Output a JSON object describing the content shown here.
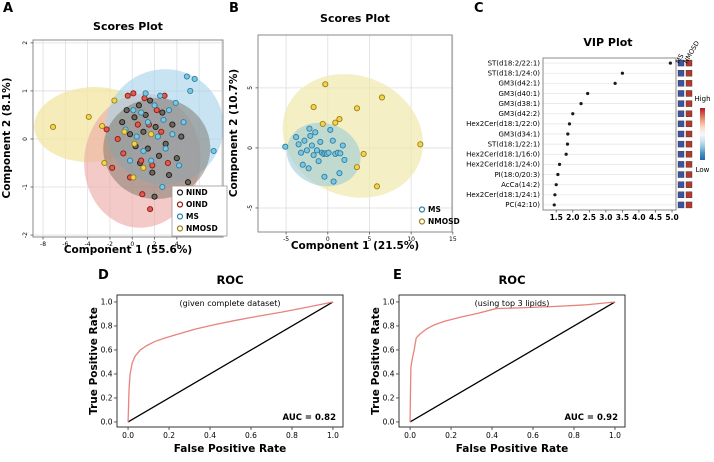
{
  "figure": {
    "letters": {
      "a": "A",
      "b": "B",
      "c": "C",
      "d": "D",
      "e": "E"
    },
    "background": "#ffffff"
  },
  "chart_data": [
    {
      "id": "pca-all",
      "type": "scatter",
      "title": "Scores Plot",
      "xlabel": "Component 1 (55.6%)",
      "ylabel": "Component 2 (8.1%)",
      "xlim": [
        -8.9,
        8.14
      ],
      "ylim": [
        -2.04,
        2.06
      ],
      "xticks": [
        -8,
        -6,
        -4,
        -2,
        0,
        2,
        4
      ],
      "xgrid": [
        -8,
        -6,
        -4,
        -2,
        0,
        2,
        4,
        6,
        8
      ],
      "yticks": [
        -2,
        -1,
        0,
        1,
        2
      ],
      "grid": true,
      "legend_position": "bottom-right-boxed",
      "groups": [
        {
          "name": "NIND",
          "stroke": "#1a1a1a",
          "fill": "#6e675c",
          "points": [
            [
              -0.9,
              0.35
            ],
            [
              -0.5,
              0.6
            ],
            [
              -0.2,
              0.1
            ],
            [
              0.2,
              0.45
            ],
            [
              0.3,
              -0.15
            ],
            [
              0.6,
              0.7
            ],
            [
              0.7,
              -0.5
            ],
            [
              1.0,
              0.15
            ],
            [
              1.2,
              0.5
            ],
            [
              1.4,
              -0.2
            ],
            [
              1.6,
              0.8
            ],
            [
              1.8,
              -0.7
            ],
            [
              2.1,
              0.25
            ],
            [
              2.4,
              -0.35
            ],
            [
              2.7,
              0.55
            ],
            [
              3.0,
              -0.1
            ],
            [
              3.3,
              -0.75
            ],
            [
              3.6,
              0.3
            ],
            [
              4.0,
              -0.4
            ],
            [
              4.4,
              0.05
            ],
            [
              5.0,
              -0.9
            ],
            [
              2.0,
              -1.2
            ]
          ]
        },
        {
          "name": "OIND",
          "stroke": "#8c1a12",
          "fill": "#e05a4e",
          "points": [
            [
              -2.3,
              0.2
            ],
            [
              -1.8,
              -0.6
            ],
            [
              -1.3,
              0.0
            ],
            [
              -0.8,
              -0.3
            ],
            [
              -0.4,
              0.9
            ],
            [
              -0.2,
              -0.8
            ],
            [
              0.1,
              0.95
            ],
            [
              0.5,
              0.3
            ],
            [
              0.8,
              -0.45
            ],
            [
              1.1,
              0.85
            ],
            [
              1.5,
              0.3
            ],
            [
              1.8,
              -0.55
            ],
            [
              2.2,
              0.6
            ],
            [
              2.6,
              0.15
            ],
            [
              2.9,
              0.9
            ],
            [
              3.2,
              -0.5
            ],
            [
              0.9,
              -1.15
            ],
            [
              1.6,
              -1.46
            ]
          ]
        },
        {
          "name": "MS",
          "stroke": "#2e7fa3",
          "fill": "#7ec6e0",
          "points": [
            [
              -0.6,
              0.2
            ],
            [
              -0.2,
              -0.45
            ],
            [
              0.1,
              0.6
            ],
            [
              0.4,
              0.05
            ],
            [
              0.8,
              0.55
            ],
            [
              1.0,
              -0.25
            ],
            [
              1.2,
              0.95
            ],
            [
              1.4,
              0.35
            ],
            [
              1.7,
              -0.45
            ],
            [
              2.0,
              0.7
            ],
            [
              2.3,
              0.05
            ],
            [
              2.5,
              0.9
            ],
            [
              2.8,
              0.4
            ],
            [
              3.0,
              -0.2
            ],
            [
              3.3,
              0.6
            ],
            [
              3.6,
              0.1
            ],
            [
              3.9,
              0.75
            ],
            [
              4.2,
              -0.55
            ],
            [
              4.6,
              0.35
            ],
            [
              4.9,
              1.3
            ],
            [
              5.6,
              1.25
            ],
            [
              5.2,
              1.0
            ],
            [
              7.3,
              -0.25
            ],
            [
              2.7,
              -1.0
            ],
            [
              3.8,
              -1.1
            ]
          ]
        },
        {
          "name": "NMOSD",
          "stroke": "#9c7e14",
          "fill": "#f3d44f",
          "points": [
            [
              -7.1,
              0.25
            ],
            [
              -3.9,
              0.46
            ],
            [
              -2.7,
              0.27
            ],
            [
              -2.5,
              -0.5
            ],
            [
              -1.6,
              0.8
            ],
            [
              -0.7,
              0.15
            ],
            [
              0.2,
              -0.1
            ],
            [
              1.0,
              -0.6
            ],
            [
              1.7,
              0.1
            ],
            [
              0.1,
              -0.8
            ]
          ]
        }
      ],
      "ellipses": [
        {
          "group": "NMOSD",
          "cx": -3.6,
          "cy": 0.3,
          "rx": 5.2,
          "ry": 0.78,
          "rot": -3,
          "fill": "#f2e6a2",
          "opacity": 0.75
        },
        {
          "group": "OIND",
          "cx": 0.9,
          "cy": -0.45,
          "rx": 5.2,
          "ry": 1.4,
          "rot": 7,
          "fill": "#eeaaa6",
          "opacity": 0.62
        },
        {
          "group": "MS",
          "cx": 2.9,
          "cy": 0.25,
          "rx": 5.3,
          "ry": 1.2,
          "rot": -14,
          "fill": "#a6d2ea",
          "opacity": 0.62
        },
        {
          "group": "NIND",
          "cx": 2.2,
          "cy": -0.2,
          "rx": 4.8,
          "ry": 1.05,
          "rot": -4,
          "fill": "#7a7468",
          "opacity": 0.5
        }
      ]
    },
    {
      "id": "pca-ms-nmosd",
      "type": "scatter",
      "title": "Scores Plot",
      "xlabel": "Component 1 (21.5%)",
      "ylabel": "Component 2 (10.7%)",
      "xlim": [
        -8.37,
        14.9
      ],
      "ylim": [
        -7.0,
        9.4
      ],
      "xticks": [
        -5,
        0,
        5,
        10,
        15
      ],
      "yticks": [
        -5,
        0,
        5
      ],
      "grid": true,
      "legend_position": "bottom-right-plain",
      "groups": [
        {
          "name": "MS",
          "stroke": "#2e7fa3",
          "fill": "#7ec6e0",
          "points": [
            [
              -5.1,
              0.1
            ],
            [
              -3.8,
              0.9
            ],
            [
              -3.5,
              0.3
            ],
            [
              -3.2,
              -0.4
            ],
            [
              -3.0,
              -1.4
            ],
            [
              -2.8,
              0.6
            ],
            [
              -2.5,
              -0.2
            ],
            [
              -2.3,
              -1.7
            ],
            [
              -2.1,
              1.0
            ],
            [
              -1.9,
              0.2
            ],
            [
              -1.7,
              -0.6
            ],
            [
              -1.5,
              1.3
            ],
            [
              -1.3,
              -0.2
            ],
            [
              -1.1,
              -1.1
            ],
            [
              -0.9,
              0.5
            ],
            [
              -0.7,
              -0.4
            ],
            [
              -0.5,
              -0.5
            ],
            [
              -0.3,
              -0.45
            ],
            [
              -0.1,
              -0.5
            ],
            [
              0.1,
              -0.4
            ],
            [
              0.3,
              1.5
            ],
            [
              0.6,
              0.6
            ],
            [
              0.9,
              -0.5
            ],
            [
              1.2,
              -0.4
            ],
            [
              1.5,
              -0.45
            ],
            [
              1.8,
              0.2
            ],
            [
              2.0,
              -1.0
            ],
            [
              -0.4,
              -2.4
            ],
            [
              0.7,
              -2.8
            ],
            [
              1.4,
              -2.1
            ],
            [
              -2.2,
              1.6
            ]
          ]
        },
        {
          "name": "NMOSD",
          "stroke": "#9c7e14",
          "fill": "#f3d44f",
          "points": [
            [
              -0.3,
              5.3
            ],
            [
              -1.7,
              3.4
            ],
            [
              3.5,
              3.3
            ],
            [
              6.5,
              4.2
            ],
            [
              -0.6,
              2.0
            ],
            [
              0.9,
              2.1
            ],
            [
              1.4,
              2.4
            ],
            [
              4.3,
              -0.5
            ],
            [
              3.5,
              -1.6
            ],
            [
              5.9,
              -3.2
            ],
            [
              11.1,
              0.3
            ]
          ]
        }
      ],
      "ellipses": [
        {
          "group": "NMOSD",
          "cx": 3.0,
          "cy": 1.0,
          "rx": 8.6,
          "ry": 5.0,
          "rot": 22,
          "fill": "#efe8ab",
          "opacity": 0.7
        },
        {
          "group": "MS",
          "cx": -0.5,
          "cy": -0.55,
          "rx": 4.5,
          "ry": 2.6,
          "rot": 18,
          "fill": "#9fccd9",
          "opacity": 0.6
        }
      ]
    },
    {
      "id": "vip",
      "type": "dot",
      "title": "VIP Plot",
      "labels": [
        "ST(d18:2/22:1)",
        "ST(d18:1/24:0)",
        "GM3(d42:1)",
        "GM3(d40:1)",
        "GM3(d38:1)",
        "GM3(d42:2)",
        "Hex2Cer(d18:1/22:0)",
        "GM3(d34:1)",
        "ST(d18:1/22:1)",
        "Hex2Cer(d18:1/16:0)",
        "Hex2Cer(d18:1/24:0)",
        "PI(18:0/20:3)",
        "AcCa(14:2)",
        "Hex2Cer(d18:1/24:1)",
        "PC(42:10)"
      ],
      "values": [
        4.95,
        3.5,
        3.28,
        2.45,
        2.25,
        2.0,
        1.9,
        1.85,
        1.84,
        1.8,
        1.6,
        1.55,
        1.5,
        1.46,
        1.44
      ],
      "xlim": [
        1.1,
        5.12
      ],
      "xticks": [
        1.5,
        2.0,
        2.5,
        3.0,
        3.5,
        4.0,
        4.5,
        5.0
      ],
      "dot_color": "#1a1a1a",
      "heatmap": {
        "columns": [
          "MS",
          "NMOSD"
        ],
        "cell_colors": [
          [
            "#3d52a1",
            "#b3392b"
          ],
          [
            "#3d52a1",
            "#b3392b"
          ],
          [
            "#3d52a1",
            "#b3392b"
          ],
          [
            "#3d52a1",
            "#b3392b"
          ],
          [
            "#3d52a1",
            "#b3392b"
          ],
          [
            "#3d52a1",
            "#b3392b"
          ],
          [
            "#3d52a1",
            "#b3392b"
          ],
          [
            "#3d52a1",
            "#b3392b"
          ],
          [
            "#3d52a1",
            "#b3392b"
          ],
          [
            "#3d52a1",
            "#b3392b"
          ],
          [
            "#3d52a1",
            "#b3392b"
          ],
          [
            "#3d52a1",
            "#b3392b"
          ],
          [
            "#3d52a1",
            "#b3392b"
          ],
          [
            "#3d52a1",
            "#b3392b"
          ],
          [
            "#3d52a1",
            "#b3392b"
          ]
        ]
      },
      "colorbar": {
        "high_label": "High",
        "low_label": "Low",
        "stops": [
          "#b2182b",
          "#d6604d",
          "#f4a582",
          "#fddbc7",
          "#f7f7f7",
          "#d1e5f0",
          "#92c5de",
          "#4393c3",
          "#2166ac"
        ]
      }
    },
    {
      "id": "roc-complete",
      "type": "line",
      "title": "ROC",
      "subtitle": "(given complete dataset)",
      "auc_label": "AUC = 0.82",
      "xlabel": "False Positive Rate",
      "ylabel": "True Positive Rate",
      "xlim": [
        -0.054,
        1.049
      ],
      "ylim": [
        -0.042,
        1.058
      ],
      "xticks": [
        0.0,
        0.2,
        0.4,
        0.6,
        0.8,
        1.0
      ],
      "yticks": [
        0.0,
        0.2,
        0.4,
        0.6,
        0.8,
        1.0
      ],
      "curve_color": "#e8837c",
      "diagonal_color": "#000000",
      "curve": [
        [
          0,
          0
        ],
        [
          0.005,
          0.28
        ],
        [
          0.01,
          0.4
        ],
        [
          0.02,
          0.49
        ],
        [
          0.035,
          0.55
        ],
        [
          0.06,
          0.6
        ],
        [
          0.09,
          0.635
        ],
        [
          0.13,
          0.67
        ],
        [
          0.18,
          0.7
        ],
        [
          0.25,
          0.735
        ],
        [
          0.33,
          0.775
        ],
        [
          0.42,
          0.81
        ],
        [
          0.52,
          0.845
        ],
        [
          0.63,
          0.88
        ],
        [
          0.75,
          0.915
        ],
        [
          0.87,
          0.955
        ],
        [
          1,
          1
        ]
      ]
    },
    {
      "id": "roc-top3",
      "type": "line",
      "title": "ROC",
      "subtitle": "(using top 3 lipids)",
      "auc_label": "AUC = 0.92",
      "xlabel": "False Positive Rate",
      "ylabel": "True Positive Rate",
      "xlim": [
        -0.054,
        1.049
      ],
      "ylim": [
        -0.042,
        1.058
      ],
      "xticks": [
        0.0,
        0.2,
        0.4,
        0.6,
        0.8,
        1.0
      ],
      "yticks": [
        0.0,
        0.2,
        0.4,
        0.6,
        0.8,
        1.0
      ],
      "curve_color": "#e8837c",
      "diagonal_color": "#000000",
      "curve": [
        [
          0,
          0
        ],
        [
          0.002,
          0.25
        ],
        [
          0.004,
          0.45
        ],
        [
          0.01,
          0.52
        ],
        [
          0.02,
          0.6
        ],
        [
          0.03,
          0.7
        ],
        [
          0.05,
          0.735
        ],
        [
          0.08,
          0.775
        ],
        [
          0.12,
          0.81
        ],
        [
          0.17,
          0.84
        ],
        [
          0.25,
          0.875
        ],
        [
          0.33,
          0.905
        ],
        [
          0.42,
          0.945
        ],
        [
          0.55,
          0.952
        ],
        [
          0.7,
          0.962
        ],
        [
          0.85,
          0.975
        ],
        [
          1,
          1
        ]
      ]
    }
  ]
}
